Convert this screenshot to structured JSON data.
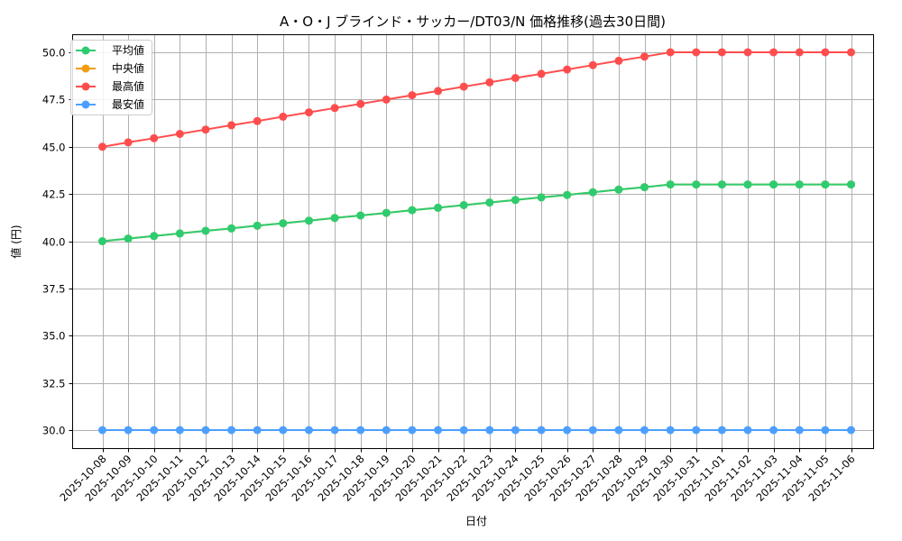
{
  "chart_data": {
    "type": "line",
    "title": "A・O・J ブラインド・サッカー/DT03/N 価格推移(過去30日間)",
    "xlabel": "日付",
    "ylabel": "値 (円)",
    "ylim": [
      29.0,
      50.9
    ],
    "yticks": [
      "30.0",
      "32.5",
      "35.0",
      "37.5",
      "40.0",
      "42.5",
      "45.0",
      "47.5",
      "50.0"
    ],
    "grid": true,
    "legend_position": "upper left",
    "x": [
      "2025-10-08",
      "2025-10-09",
      "2025-10-10",
      "2025-10-11",
      "2025-10-12",
      "2025-10-13",
      "2025-10-14",
      "2025-10-15",
      "2025-10-16",
      "2025-10-17",
      "2025-10-18",
      "2025-10-19",
      "2025-10-20",
      "2025-10-21",
      "2025-10-22",
      "2025-10-23",
      "2025-10-24",
      "2025-10-25",
      "2025-10-26",
      "2025-10-27",
      "2025-10-28",
      "2025-10-29",
      "2025-10-30",
      "2025-10-31",
      "2025-11-01",
      "2025-11-02",
      "2025-11-03",
      "2025-11-04",
      "2025-11-05",
      "2025-11-06"
    ],
    "series": [
      {
        "name": "平均値",
        "color": "#2ecc71",
        "values": [
          40.0,
          40.14,
          40.27,
          40.41,
          40.55,
          40.68,
          40.82,
          40.95,
          41.09,
          41.23,
          41.36,
          41.5,
          41.64,
          41.77,
          41.91,
          42.05,
          42.18,
          42.32,
          42.45,
          42.59,
          42.73,
          42.86,
          43.0,
          43.0,
          43.0,
          43.0,
          43.0,
          43.0,
          43.0,
          43.0
        ]
      },
      {
        "name": "中央値",
        "color": "#f39c12",
        "values": [
          40.0,
          40.14,
          40.27,
          40.41,
          40.55,
          40.68,
          40.82,
          40.95,
          41.09,
          41.23,
          41.36,
          41.5,
          41.64,
          41.77,
          41.91,
          42.05,
          42.18,
          42.32,
          42.45,
          42.59,
          42.73,
          42.86,
          43.0,
          43.0,
          43.0,
          43.0,
          43.0,
          43.0,
          43.0,
          43.0
        ]
      },
      {
        "name": "最高値",
        "color": "#ff4d4d",
        "values": [
          45.0,
          45.23,
          45.45,
          45.68,
          45.91,
          46.14,
          46.36,
          46.59,
          46.82,
          47.05,
          47.27,
          47.5,
          47.73,
          47.95,
          48.18,
          48.41,
          48.64,
          48.86,
          49.09,
          49.32,
          49.55,
          49.77,
          50.0,
          50.0,
          50.0,
          50.0,
          50.0,
          50.0,
          50.0,
          50.0
        ]
      },
      {
        "name": "最安値",
        "color": "#4d9fff",
        "values": [
          30.0,
          30.0,
          30.0,
          30.0,
          30.0,
          30.0,
          30.0,
          30.0,
          30.0,
          30.0,
          30.0,
          30.0,
          30.0,
          30.0,
          30.0,
          30.0,
          30.0,
          30.0,
          30.0,
          30.0,
          30.0,
          30.0,
          30.0,
          30.0,
          30.0,
          30.0,
          30.0,
          30.0,
          30.0,
          30.0
        ]
      }
    ]
  }
}
